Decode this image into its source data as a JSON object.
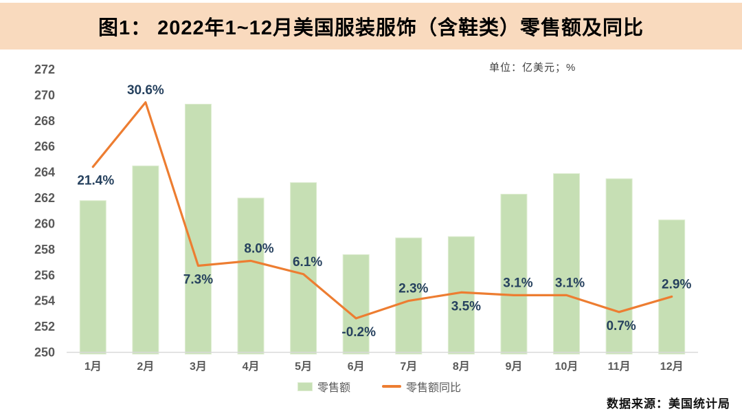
{
  "header": {
    "title": "图1： 2022年1~12月美国服装服饰（含鞋类）零售额及同比"
  },
  "chart": {
    "unit_label": "单位：亿美元；%"
  },
  "legend": {
    "bars": "零售额",
    "line": "零售额同比"
  },
  "footer": {
    "source": "数据来源：美国统计局"
  },
  "colors": {
    "header_bg": "#F9DABE",
    "bar_fill": "#C6DFB4",
    "bar_border": "#DEEDD1",
    "line": "#ED7D31",
    "point_label": "#26415E",
    "axis_text": "#595959",
    "baseline": "#D9D9D9"
  },
  "chart_data": {
    "type": "combo_bar_line",
    "title": "图1： 2022年1~12月美国服装服饰（含鞋类）零售额及同比",
    "unit": "单位：亿美元；%",
    "source": "数据来源：美国统计局",
    "grid": false,
    "legend_position": "bottom",
    "categories": [
      "1月",
      "2月",
      "3月",
      "4月",
      "5月",
      "6月",
      "7月",
      "8月",
      "9月",
      "10月",
      "11月",
      "12月"
    ],
    "series": [
      {
        "name": "零售额",
        "type": "bar",
        "unit": "亿美元",
        "axis": "primary",
        "values": [
          261.8,
          264.5,
          269.3,
          262.0,
          263.2,
          257.6,
          258.9,
          259.0,
          262.3,
          263.9,
          263.5,
          260.3
        ]
      },
      {
        "name": "零售额同比",
        "type": "line",
        "unit": "%",
        "axis": "secondary",
        "values": [
          21.4,
          30.6,
          7.3,
          8.0,
          6.1,
          -0.2,
          2.3,
          3.5,
          3.1,
          3.1,
          0.7,
          2.9
        ],
        "point_labels": [
          "21.4%",
          "30.6%",
          "7.3%",
          "8.0%",
          "6.1%",
          "-0.2%",
          "2.3%",
          "3.5%",
          "3.1%",
          "3.1%",
          "0.7%",
          "2.9%"
        ],
        "label_side": [
          "below",
          "above",
          "below",
          "above",
          "above",
          "below",
          "above",
          "below",
          "above",
          "above",
          "below",
          "above"
        ],
        "label_dx": [
          4,
          0,
          0,
          12,
          6,
          4,
          7,
          7,
          6,
          5,
          3,
          7
        ]
      }
    ],
    "y_axis": {
      "min": 250,
      "max": 272,
      "step": 2,
      "ticks": [
        272,
        270,
        268,
        266,
        264,
        262,
        260,
        258,
        256,
        254,
        252,
        250
      ]
    },
    "secondary_axis": {
      "min": -5.05,
      "max": 35.29,
      "visible": false
    }
  }
}
